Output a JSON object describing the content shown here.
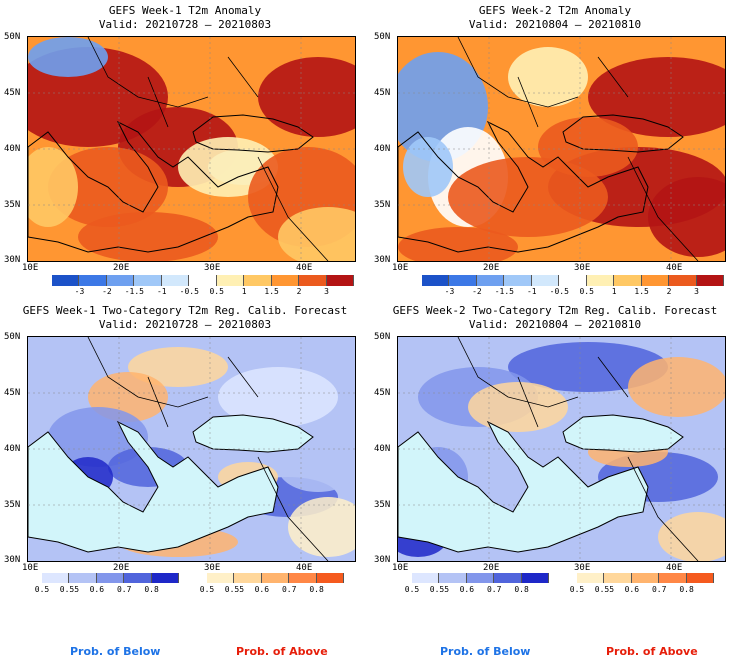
{
  "panels": [
    {
      "title": "GEFS Week-1 T2m Anomaly",
      "valid": "Valid: 20210728 – 20210803",
      "lat_labels": [
        "50N",
        "45N",
        "40N",
        "35N",
        "30N"
      ],
      "lon_labels": [
        "10E",
        "20E",
        "30E",
        "40E"
      ],
      "colorbar_labels": [
        "-3",
        "-2",
        "-1.5",
        "-1",
        "-0.5",
        "0.5",
        "1",
        "1.5",
        "2",
        "3"
      ]
    },
    {
      "title": "GEFS Week-2 T2m Anomaly",
      "valid": "Valid: 20210804 – 20210810",
      "lat_labels": [
        "50N",
        "45N",
        "40N",
        "35N",
        "30N"
      ],
      "lon_labels": [
        "10E",
        "20E",
        "30E",
        "40E"
      ],
      "colorbar_labels": [
        "-3",
        "-2",
        "-1.5",
        "-1",
        "-0.5",
        "0.5",
        "1",
        "1.5",
        "2",
        "3"
      ]
    },
    {
      "title": "GEFS Week-1 Two-Category T2m Reg. Calib. Forecast",
      "valid": "Valid: 20210728 – 20210803",
      "lat_labels": [
        "50N",
        "45N",
        "40N",
        "35N",
        "30N"
      ],
      "lon_labels": [
        "10E",
        "20E",
        "30E",
        "40E"
      ],
      "below_labels": [
        "0.5",
        "0.55",
        "0.6",
        "0.7",
        "0.8"
      ],
      "above_labels": [
        "0.5",
        "0.55",
        "0.6",
        "0.7",
        "0.8"
      ]
    },
    {
      "title": "GEFS Week-2 Two-Category T2m Reg. Calib. Forecast",
      "valid": "Valid: 20210804 – 20210810",
      "lat_labels": [
        "50N",
        "45N",
        "40N",
        "35N",
        "30N"
      ],
      "lon_labels": [
        "10E",
        "20E",
        "30E",
        "40E"
      ],
      "below_labels": [
        "0.5",
        "0.55",
        "0.6",
        "0.7",
        "0.8"
      ],
      "above_labels": [
        "0.5",
        "0.55",
        "0.6",
        "0.7",
        "0.8"
      ]
    }
  ],
  "legend": {
    "prob_below": "Prob. of Below",
    "prob_above": "Prob. of Above",
    "below_color": "#1e73e6",
    "above_color": "#e61e0a"
  },
  "colors": {
    "anomaly_scale": [
      "#1c52c8",
      "#3c78e6",
      "#6ea0f0",
      "#a0c8f8",
      "#d2e8fc",
      "#ffffff",
      "#fff0b4",
      "#ffc864",
      "#ff9632",
      "#eb5a1e",
      "#b41414"
    ],
    "below_scale": [
      "#dde6ff",
      "#b4c3f5",
      "#8296eb",
      "#5064dc",
      "#1e28c8"
    ],
    "above_scale": [
      "#fff0c8",
      "#ffd79b",
      "#ffb46e",
      "#ff8746",
      "#f55a1e"
    ],
    "sea": "#d2f5fa"
  }
}
